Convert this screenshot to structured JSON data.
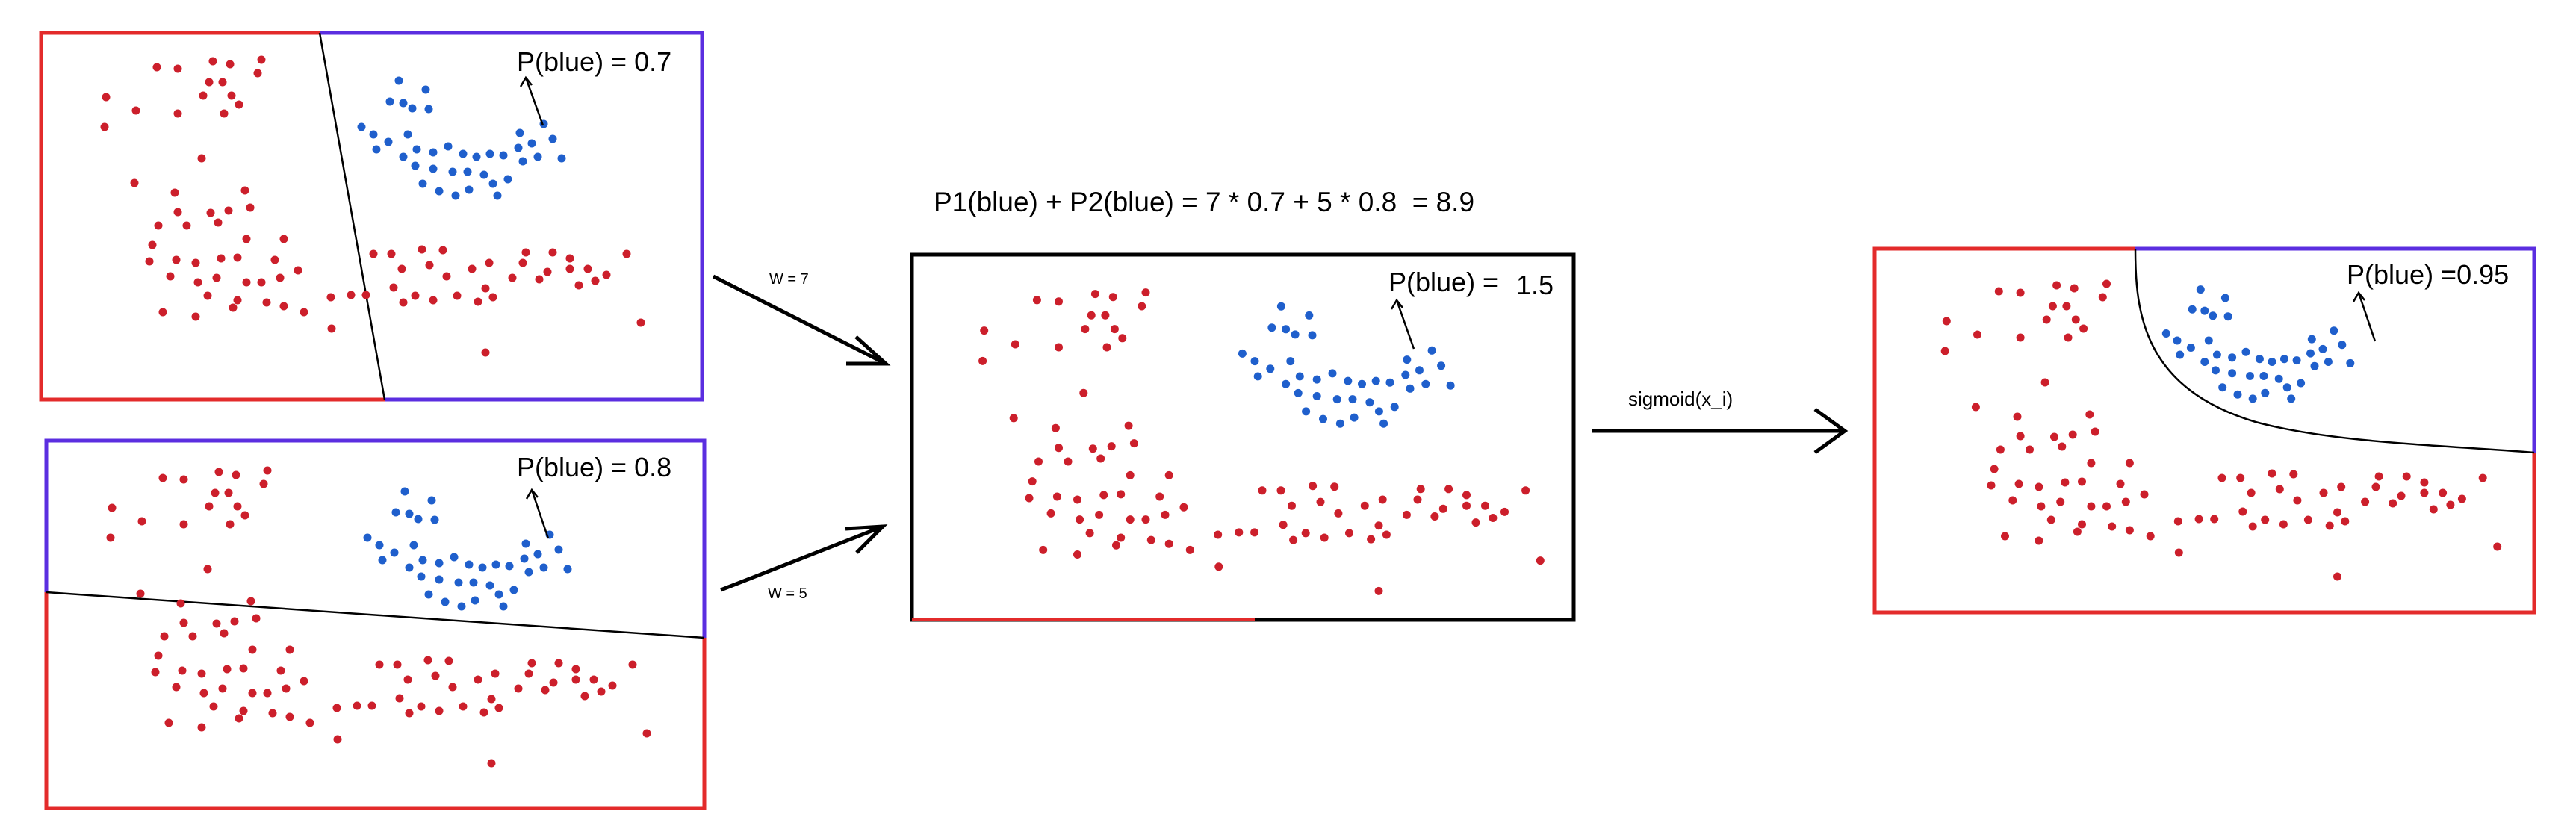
{
  "panel1": {
    "label": "P(blue) = 0.7"
  },
  "panel2": {
    "label": "P(blue) = 0.8"
  },
  "panel3": {
    "label_prefix": "P(blue) =",
    "label_value": "1.5"
  },
  "panel4": {
    "label": "P(blue) =0.95"
  },
  "formula": "P1(blue) + P2(blue) = 7 * 0.7 + 5 * 0.8  = 8.9",
  "arrow1": {
    "label": "W = 7"
  },
  "arrow2": {
    "label": "W = 5"
  },
  "arrow3": {
    "label": "sigmoid(x_i)"
  },
  "colors": {
    "red": "#cc1f2b",
    "blue": "#1f5fcc",
    "border_red": "#e32b2b",
    "border_blue": "#5b2ee0",
    "border_black": "#000000"
  }
}
